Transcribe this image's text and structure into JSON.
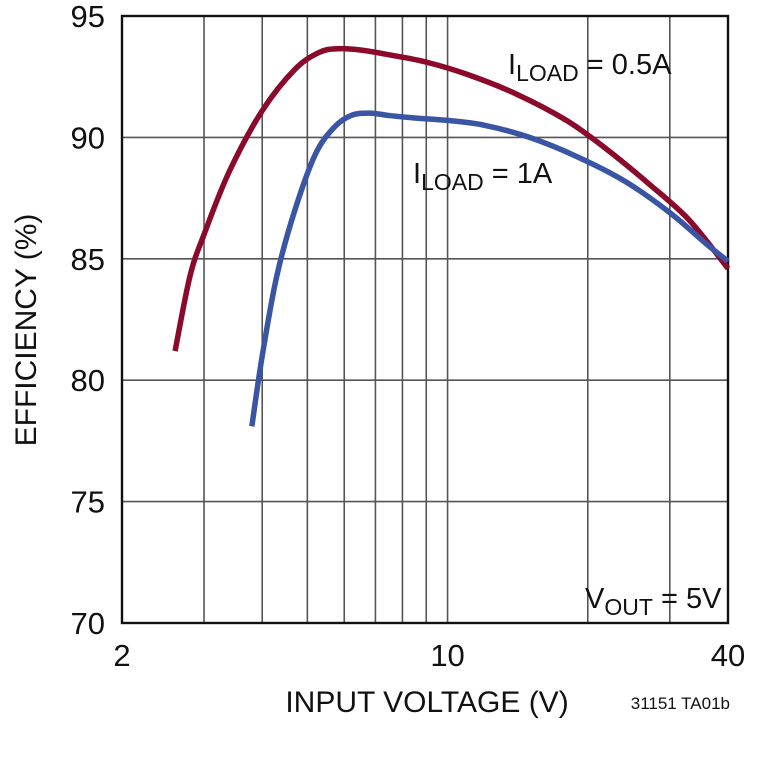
{
  "chart_data": {
    "type": "line",
    "xlabel": "INPUT VOLTAGE (V)",
    "ylabel": "EFFICIENCY (%)",
    "xscale": "log",
    "xlim": [
      2,
      40
    ],
    "ylim": [
      70,
      95
    ],
    "x_tick_labels": [
      "2",
      "10",
      "40"
    ],
    "y_tick_labels": [
      "70",
      "75",
      "80",
      "85",
      "90",
      "95"
    ],
    "grid": true,
    "series": [
      {
        "name": "I_LOAD = 0.5A",
        "color": "#8b0a2c",
        "x": [
          2.6,
          2.8,
          3.0,
          3.4,
          4.0,
          4.7,
          5.3,
          5.8,
          6.5,
          7.5,
          9.0,
          11,
          14,
          18,
          22,
          27,
          33,
          40
        ],
        "y": [
          81.2,
          84.3,
          86.0,
          88.6,
          91.1,
          92.8,
          93.5,
          93.65,
          93.6,
          93.4,
          93.1,
          92.6,
          91.8,
          90.7,
          89.5,
          88.1,
          86.6,
          84.6
        ]
      },
      {
        "name": "I_LOAD = 1A",
        "color": "#3b55a5",
        "x": [
          3.8,
          4.0,
          4.3,
          4.7,
          5.2,
          5.7,
          6.2,
          6.8,
          7.5,
          8.5,
          10,
          12,
          15,
          19,
          24,
          30,
          36,
          40
        ],
        "y": [
          78.1,
          81.0,
          84.3,
          87.0,
          89.3,
          90.4,
          90.9,
          91.0,
          90.9,
          90.8,
          90.7,
          90.5,
          90.0,
          89.2,
          88.2,
          86.9,
          85.6,
          84.9
        ]
      }
    ],
    "annotations": {
      "load_half": {
        "main": "I",
        "sub": "LOAD",
        "rest": " = 0.5A"
      },
      "load_one": {
        "main": "I",
        "sub": "LOAD",
        "rest": " = 1A"
      },
      "vout": {
        "main": "V",
        "sub": "OUT",
        "rest": " = 5V"
      }
    },
    "figure_code": "31151 TA01b"
  }
}
